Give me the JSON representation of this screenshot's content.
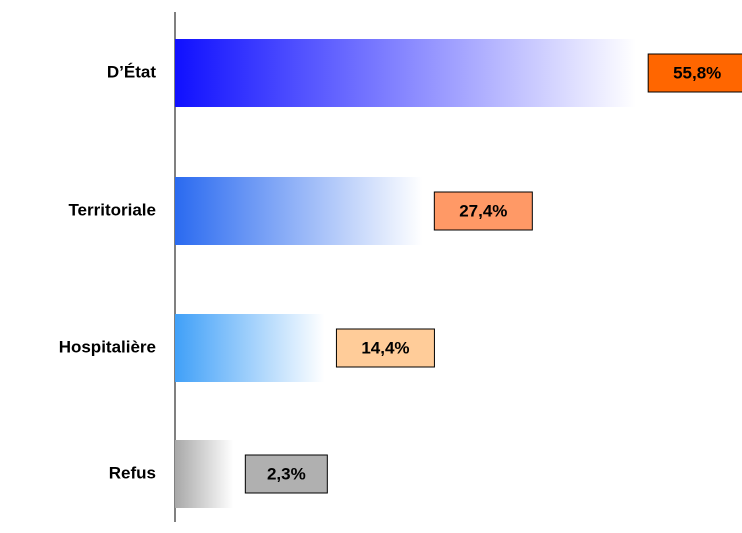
{
  "chart_data": {
    "type": "bar",
    "orientation": "horizontal",
    "categories": [
      "D’État",
      "Territoriale",
      "Hospitalière",
      "Refus"
    ],
    "values": [
      55.8,
      27.4,
      14.4,
      2.3
    ],
    "value_labels": [
      "55,8%",
      "27,4%",
      "14,4%",
      "2,3%"
    ],
    "colors": [
      "#1010ff",
      "#2a6af0",
      "#40a0f8",
      "#a8a8a8"
    ],
    "label_colors": [
      "#ff6600",
      "#ff9966",
      "#ffcc99",
      "#b0b0b0"
    ]
  }
}
